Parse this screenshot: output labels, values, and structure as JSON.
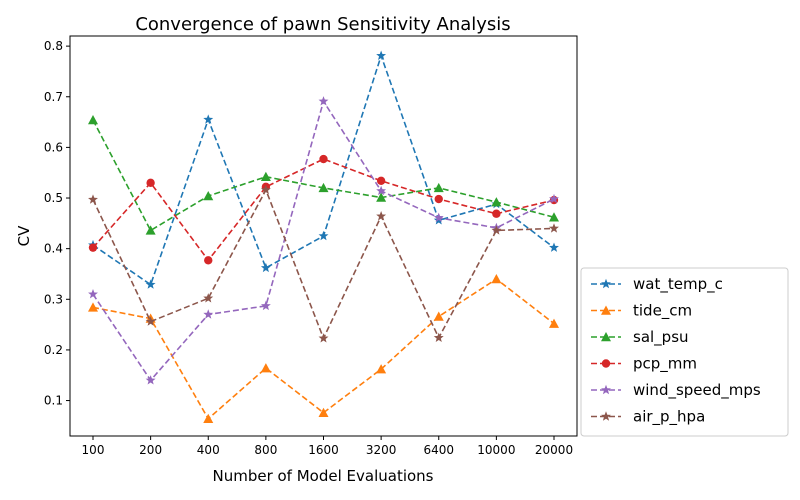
{
  "chart_data": {
    "type": "line",
    "title": "Convergence of pawn Sensitivity Analysis",
    "xlabel": "Number of Model Evaluations",
    "ylabel": "CV",
    "categories": [
      "100",
      "200",
      "400",
      "800",
      "1600",
      "3200",
      "6400",
      "10000",
      "20000"
    ],
    "ylim": [
      0.03,
      0.82
    ],
    "yticks": [
      0.1,
      0.2,
      0.3,
      0.4,
      0.5,
      0.6,
      0.7,
      0.8
    ],
    "grid": false,
    "legend_position": "outside-right-bottom",
    "series": [
      {
        "name": "wat_temp_c",
        "color": "#1f77b4",
        "marker": "star",
        "values": [
          0.407,
          0.329,
          0.655,
          0.362,
          0.425,
          0.781,
          0.456,
          0.488,
          0.402
        ]
      },
      {
        "name": "tide_cm",
        "color": "#ff7f0e",
        "marker": "triangle",
        "values": [
          0.284,
          0.262,
          0.064,
          0.164,
          0.076,
          0.162,
          0.266,
          0.34,
          0.252
        ]
      },
      {
        "name": "sal_psu",
        "color": "#2ca02c",
        "marker": "triangle",
        "values": [
          0.654,
          0.436,
          0.504,
          0.542,
          0.52,
          0.501,
          0.52,
          0.492,
          0.462
        ]
      },
      {
        "name": "pcp_mm",
        "color": "#d62728",
        "marker": "circle",
        "values": [
          0.402,
          0.53,
          0.377,
          0.522,
          0.577,
          0.534,
          0.498,
          0.469,
          0.496
        ]
      },
      {
        "name": "wind_speed_mps",
        "color": "#9467bd",
        "marker": "star",
        "values": [
          0.31,
          0.14,
          0.27,
          0.287,
          0.691,
          0.514,
          0.461,
          0.441,
          0.498
        ]
      },
      {
        "name": "air_p_hpa",
        "color": "#8c564b",
        "marker": "star",
        "values": [
          0.497,
          0.256,
          0.302,
          0.516,
          0.223,
          0.464,
          0.224,
          0.436,
          0.44
        ]
      }
    ]
  }
}
